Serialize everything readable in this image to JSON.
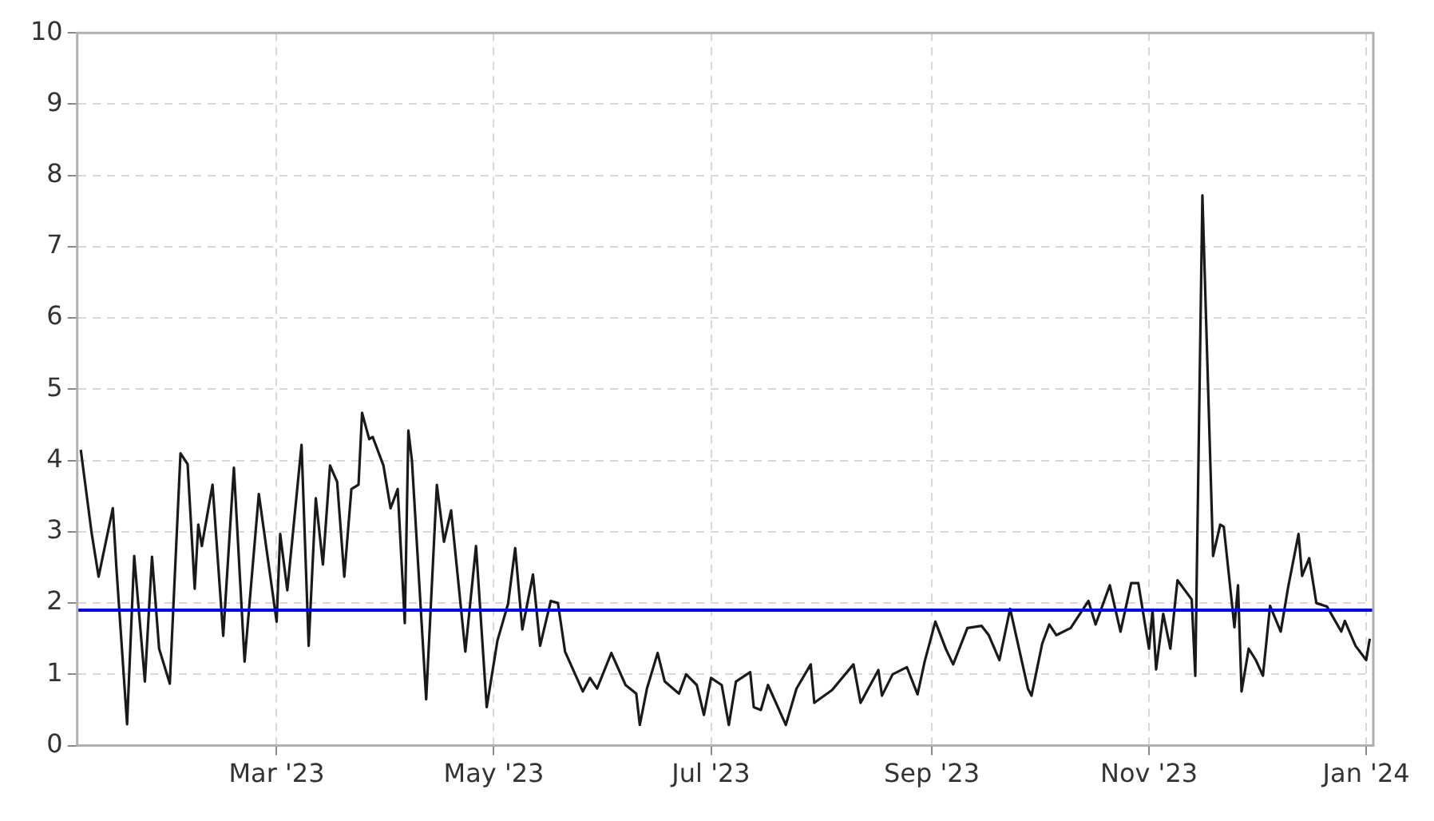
{
  "chart_data": {
    "type": "line",
    "x": [
      "2023-01-05",
      "2023-01-08",
      "2023-01-10",
      "2023-01-14",
      "2023-01-15",
      "2023-01-18",
      "2023-01-20",
      "2023-01-23",
      "2023-01-25",
      "2023-01-27",
      "2023-01-30",
      "2023-02-02",
      "2023-02-04",
      "2023-02-06",
      "2023-02-07",
      "2023-02-08",
      "2023-02-11",
      "2023-02-14",
      "2023-02-17",
      "2023-02-20",
      "2023-02-24",
      "2023-03-01",
      "2023-03-02",
      "2023-03-04",
      "2023-03-08",
      "2023-03-10",
      "2023-03-12",
      "2023-03-14",
      "2023-03-16",
      "2023-03-18",
      "2023-03-20",
      "2023-03-22",
      "2023-03-24",
      "2023-03-25",
      "2023-03-27",
      "2023-03-28",
      "2023-03-31",
      "2023-04-02",
      "2023-04-04",
      "2023-04-06",
      "2023-04-07",
      "2023-04-08",
      "2023-04-12",
      "2023-04-15",
      "2023-04-17",
      "2023-04-19",
      "2023-04-23",
      "2023-04-26",
      "2023-04-29",
      "2023-05-02",
      "2023-05-05",
      "2023-05-07",
      "2023-05-09",
      "2023-05-12",
      "2023-05-14",
      "2023-05-17",
      "2023-05-19",
      "2023-05-21",
      "2023-05-26",
      "2023-05-28",
      "2023-05-30",
      "2023-06-03",
      "2023-06-07",
      "2023-06-10",
      "2023-06-11",
      "2023-06-13",
      "2023-06-16",
      "2023-06-18",
      "2023-06-22",
      "2023-06-24",
      "2023-06-27",
      "2023-06-29",
      "2023-07-01",
      "2023-07-04",
      "2023-07-06",
      "2023-07-08",
      "2023-07-12",
      "2023-07-13",
      "2023-07-15",
      "2023-07-17",
      "2023-07-22",
      "2023-07-25",
      "2023-07-29",
      "2023-07-30",
      "2023-08-04",
      "2023-08-10",
      "2023-08-12",
      "2023-08-17",
      "2023-08-18",
      "2023-08-21",
      "2023-08-25",
      "2023-08-28",
      "2023-08-30",
      "2023-09-02",
      "2023-09-05",
      "2023-09-07",
      "2023-09-11",
      "2023-09-15",
      "2023-09-17",
      "2023-09-20",
      "2023-09-23",
      "2023-09-28",
      "2023-09-29",
      "2023-10-02",
      "2023-10-04",
      "2023-10-06",
      "2023-10-10",
      "2023-10-15",
      "2023-10-17",
      "2023-10-21",
      "2023-10-24",
      "2023-10-27",
      "2023-10-29",
      "2023-11-01",
      "2023-11-02",
      "2023-11-03",
      "2023-11-05",
      "2023-11-07",
      "2023-11-09",
      "2023-11-13",
      "2023-11-14",
      "2023-11-16",
      "2023-11-19",
      "2023-11-21",
      "2023-11-22",
      "2023-11-25",
      "2023-11-26",
      "2023-11-27",
      "2023-11-29",
      "2023-12-01",
      "2023-12-03",
      "2023-12-05",
      "2023-12-08",
      "2023-12-10",
      "2023-12-13",
      "2023-12-14",
      "2023-12-16",
      "2023-12-18",
      "2023-12-21",
      "2023-12-25",
      "2023-12-26",
      "2023-12-29",
      "2024-01-01",
      "2024-01-02"
    ],
    "series": [
      {
        "color": "#1a1a1a",
        "values": [
          4.15,
          3.0,
          2.37,
          3.33,
          2.5,
          0.3,
          2.66,
          0.9,
          2.65,
          1.36,
          0.87,
          4.1,
          3.95,
          2.2,
          3.1,
          2.8,
          3.66,
          1.54,
          3.9,
          1.18,
          3.53,
          1.74,
          2.97,
          2.18,
          4.22,
          1.4,
          3.47,
          2.54,
          3.93,
          3.7,
          2.37,
          3.6,
          3.66,
          4.67,
          4.3,
          4.33,
          3.93,
          3.33,
          3.6,
          1.72,
          4.42,
          4.0,
          0.65,
          3.66,
          2.86,
          3.3,
          1.32,
          2.8,
          0.54,
          1.47,
          1.99,
          2.77,
          1.63,
          2.4,
          1.4,
          2.03,
          2.0,
          1.32,
          0.76,
          0.95,
          0.8,
          1.3,
          0.85,
          0.73,
          0.29,
          0.8,
          1.3,
          0.9,
          0.73,
          1.0,
          0.85,
          0.43,
          0.95,
          0.85,
          0.29,
          0.9,
          1.03,
          0.54,
          0.5,
          0.85,
          0.29,
          0.8,
          1.14,
          0.6,
          0.78,
          1.14,
          0.6,
          1.06,
          0.7,
          1.0,
          1.1,
          0.72,
          1.18,
          1.74,
          1.35,
          1.14,
          1.65,
          1.68,
          1.55,
          1.2,
          1.92,
          0.8,
          0.7,
          1.43,
          1.7,
          1.55,
          1.65,
          2.03,
          1.7,
          2.25,
          1.6,
          2.28,
          2.28,
          1.36,
          1.9,
          1.07,
          1.85,
          1.36,
          2.32,
          2.05,
          0.98,
          7.72,
          2.66,
          3.1,
          3.07,
          1.66,
          2.25,
          0.76,
          1.36,
          1.2,
          0.98,
          1.96,
          1.6,
          2.2,
          2.97,
          2.38,
          2.63,
          2.0,
          1.95,
          1.6,
          1.75,
          1.4,
          1.2,
          1.5
        ]
      }
    ],
    "xlim": [
      "2023-01-04",
      "2024-01-03"
    ],
    "xticks": [
      {
        "value": "2023-03-01",
        "label": "Mar '23"
      },
      {
        "value": "2023-05-01",
        "label": "May '23"
      },
      {
        "value": "2023-07-01",
        "label": "Jul '23"
      },
      {
        "value": "2023-09-01",
        "label": "Sep '23"
      },
      {
        "value": "2023-11-01",
        "label": "Nov '23"
      },
      {
        "value": "2024-01-01",
        "label": "Jan '24"
      }
    ],
    "ylim": [
      0,
      10
    ],
    "yticks": [
      0,
      1,
      2,
      3,
      4,
      5,
      6,
      7,
      8,
      9,
      10
    ],
    "grid": true,
    "legend": false,
    "marker": "none",
    "line_style": "solid",
    "ref_lines": [
      {
        "axis": "y",
        "value": 1.9,
        "color": "#0000ff",
        "line_style": "solid"
      }
    ]
  }
}
